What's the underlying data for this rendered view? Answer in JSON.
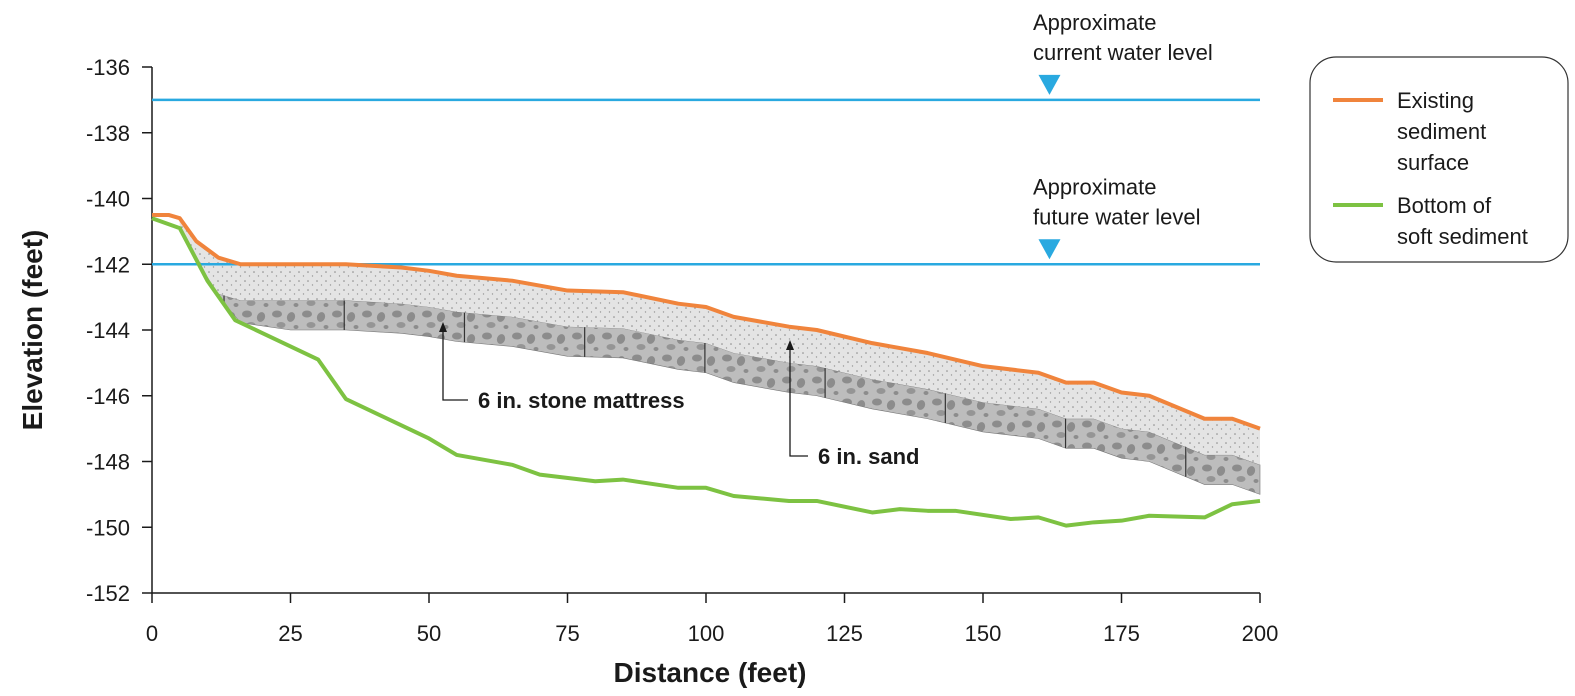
{
  "chart_data": {
    "type": "line",
    "x_label": "Distance (feet)",
    "y_label": "Elevation (feet)",
    "xlim": [
      0,
      200
    ],
    "xticks": [
      0,
      25,
      50,
      75,
      100,
      125,
      150,
      175,
      200
    ],
    "ylim": [
      -152,
      -136
    ],
    "yticks": [
      -152,
      -150,
      -148,
      -146,
      -144,
      -142,
      -140,
      -138,
      -136
    ],
    "series": [
      {
        "name": "Existing sediment surface",
        "color": "#f0843c",
        "x": [
          0,
          3,
          5,
          8,
          12,
          16,
          25,
          35,
          45,
          50,
          55,
          65,
          75,
          85,
          95,
          100,
          105,
          115,
          120,
          130,
          140,
          150,
          160,
          165,
          170,
          175,
          180,
          190,
          195,
          200
        ],
        "values": [
          -140.5,
          -140.5,
          -140.6,
          -141.3,
          -141.8,
          -142.0,
          -142.0,
          -142.0,
          -142.1,
          -142.2,
          -142.35,
          -142.5,
          -142.8,
          -142.85,
          -143.2,
          -143.3,
          -143.6,
          -143.9,
          -144.0,
          -144.4,
          -144.7,
          -145.1,
          -145.3,
          -145.6,
          -145.6,
          -145.9,
          -146.0,
          -146.7,
          -146.7,
          -147.0
        ]
      },
      {
        "name": "Bottom of soft sediment",
        "color": "#7dc242",
        "x": [
          0,
          5,
          10,
          15,
          20,
          25,
          30,
          35,
          40,
          45,
          50,
          55,
          65,
          70,
          80,
          85,
          95,
          100,
          105,
          115,
          120,
          130,
          135,
          140,
          145,
          155,
          160,
          165,
          170,
          175,
          180,
          190,
          195,
          200
        ],
        "values": [
          -140.6,
          -140.9,
          -142.5,
          -143.7,
          -144.1,
          -144.5,
          -144.9,
          -146.1,
          -146.5,
          -146.9,
          -147.3,
          -147.8,
          -148.1,
          -148.4,
          -148.6,
          -148.55,
          -148.8,
          -148.8,
          -149.05,
          -149.2,
          -149.2,
          -149.55,
          -149.45,
          -149.5,
          -149.5,
          -149.75,
          -149.7,
          -149.95,
          -149.85,
          -149.8,
          -149.65,
          -149.7,
          -149.3,
          -149.2
        ]
      }
    ],
    "reference_lines": [
      {
        "value": -137,
        "color": "#29a9e0",
        "label_lines": [
          "Approximate",
          "current water level"
        ]
      },
      {
        "value": -142,
        "color": "#29a9e0",
        "label_lines": [
          "Approximate",
          "future water level"
        ]
      }
    ],
    "annotations": [
      {
        "text": "6 in. stone mattress"
      },
      {
        "text": "6 in. sand"
      }
    ]
  }
}
